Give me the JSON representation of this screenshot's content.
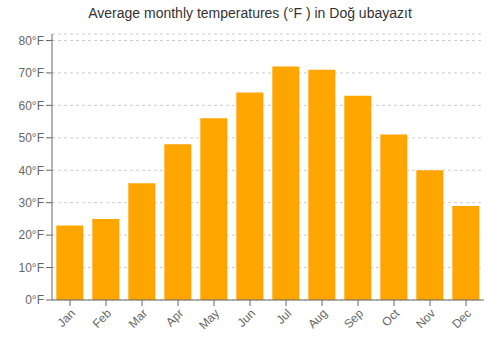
{
  "chart_data": {
    "type": "bar",
    "title": "Average monthly temperatures (°F ) in Doğ ubayazıt",
    "categories": [
      "Jan",
      "Feb",
      "Mar",
      "Apr",
      "May",
      "Jun",
      "Jul",
      "Aug",
      "Sep",
      "Oct",
      "Nov",
      "Dec"
    ],
    "values": [
      23,
      25,
      36,
      48,
      56,
      64,
      72,
      71,
      63,
      51,
      40,
      29
    ],
    "color": "#FFA500",
    "ylim": [
      0,
      82
    ],
    "yticks": [
      {
        "value": 0,
        "label": "0°F"
      },
      {
        "value": 10,
        "label": "10°F"
      },
      {
        "value": 20,
        "label": "20°F"
      },
      {
        "value": 30,
        "label": "30°F"
      },
      {
        "value": 40,
        "label": "40°F"
      },
      {
        "value": 50,
        "label": "50°F"
      },
      {
        "value": 60,
        "label": "60°F"
      },
      {
        "value": 70,
        "label": "70°F"
      },
      {
        "value": 80,
        "label": "80°F"
      }
    ],
    "grid": true
  }
}
